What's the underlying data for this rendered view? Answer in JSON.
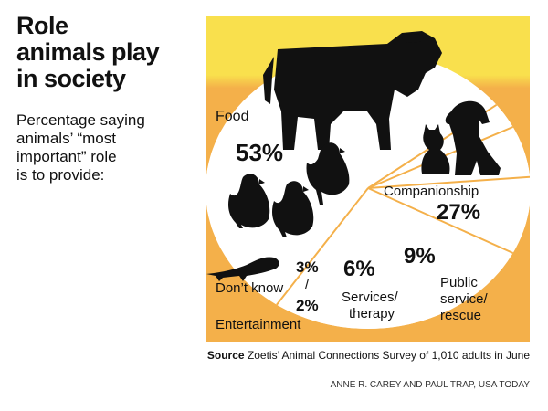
{
  "headline": [
    "Role",
    "animals play",
    "in society"
  ],
  "subhead": [
    "Percentage saying",
    "animals’ “most",
    "important” role",
    "is to provide:"
  ],
  "colors": {
    "background_top": "#f9e04d",
    "background_bottom": "#f4b04a",
    "pie_fill": "#ffffff",
    "divider": "#f4b04a",
    "silhouette": "#111111"
  },
  "icons": [
    "cow-icon",
    "chicken-icon",
    "chicken-icon",
    "chicken-icon",
    "cat-icon",
    "dog-icon",
    "lizard-icon"
  ],
  "chart_data": {
    "type": "pie",
    "title": "Role animals play in society",
    "slices": [
      {
        "category": "Food",
        "value": 53,
        "value_label": "53%"
      },
      {
        "category": "Companionship",
        "value": 27,
        "value_label": "27%"
      },
      {
        "category": "Public service/ rescue",
        "value": 9,
        "value_label": "9%",
        "lines": [
          "Public",
          "service/",
          "rescue"
        ]
      },
      {
        "category": "Services/ therapy",
        "value": 6,
        "value_label": "6%",
        "lines": [
          "Services/",
          "therapy"
        ]
      },
      {
        "category": "Don't know",
        "value": 3,
        "value_label": "3%",
        "text": "Don’t know"
      },
      {
        "category": "Entertainment",
        "value": 2,
        "value_label": "2%"
      }
    ],
    "slash": "/"
  },
  "source": {
    "label": "Source",
    "text": "Zoetis’ Animal Connections Survey of 1,010 adults in June"
  },
  "credit": "ANNE R. CAREY AND PAUL TRAP, USA TODAY"
}
